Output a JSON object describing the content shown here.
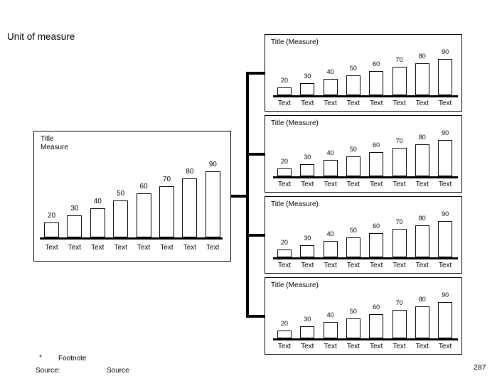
{
  "page": {
    "title": "Unit of measure",
    "footnote_marker": "*",
    "footnote_text": "Footnote",
    "source_label": "Source:",
    "source_value": "Source",
    "page_number": "287"
  },
  "colors": {
    "ink": "#000000",
    "background": "#ffffff",
    "bar_fill": "#ffffff",
    "bar_border": "#000000"
  },
  "chart_data": [
    {
      "id": "main-chart",
      "type": "bar",
      "title": "Title",
      "measure_label": "Measure",
      "categories": [
        "Text",
        "Text",
        "Text",
        "Text",
        "Text",
        "Text",
        "Text",
        "Text"
      ],
      "values": [
        20,
        30,
        40,
        50,
        60,
        70,
        80,
        90
      ],
      "ylim": [
        0,
        100
      ],
      "grid": false,
      "legend": false,
      "value_labels": "above-bars",
      "category_labels": "below-axis"
    },
    {
      "id": "detail-chart-1",
      "type": "bar",
      "title": "Title (Measure)",
      "categories": [
        "Text",
        "Text",
        "Text",
        "Text",
        "Text",
        "Text",
        "Text",
        "Text"
      ],
      "values": [
        20,
        30,
        40,
        50,
        60,
        70,
        80,
        90
      ],
      "ylim": [
        0,
        100
      ],
      "grid": false,
      "legend": false,
      "value_labels": "above-bars",
      "category_labels": "below-axis"
    },
    {
      "id": "detail-chart-2",
      "type": "bar",
      "title": "Title (Measure)",
      "categories": [
        "Text",
        "Text",
        "Text",
        "Text",
        "Text",
        "Text",
        "Text",
        "Text"
      ],
      "values": [
        20,
        30,
        40,
        50,
        60,
        70,
        80,
        90
      ],
      "ylim": [
        0,
        100
      ],
      "grid": false,
      "legend": false,
      "value_labels": "above-bars",
      "category_labels": "below-axis"
    },
    {
      "id": "detail-chart-3",
      "type": "bar",
      "title": "Title (Measure)",
      "categories": [
        "Text",
        "Text",
        "Text",
        "Text",
        "Text",
        "Text",
        "Text",
        "Text"
      ],
      "values": [
        20,
        30,
        40,
        50,
        60,
        70,
        80,
        90
      ],
      "ylim": [
        0,
        100
      ],
      "grid": false,
      "legend": false,
      "value_labels": "above-bars",
      "category_labels": "below-axis"
    },
    {
      "id": "detail-chart-4",
      "type": "bar",
      "title": "Title (Measure)",
      "categories": [
        "Text",
        "Text",
        "Text",
        "Text",
        "Text",
        "Text",
        "Text",
        "Text"
      ],
      "values": [
        20,
        30,
        40,
        50,
        60,
        70,
        80,
        90
      ],
      "ylim": [
        0,
        100
      ],
      "grid": false,
      "legend": false,
      "value_labels": "above-bars",
      "category_labels": "below-axis"
    }
  ]
}
